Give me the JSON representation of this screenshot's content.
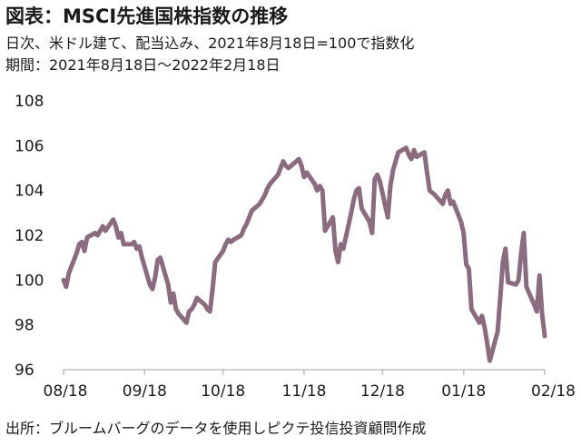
{
  "header": {
    "title": "図表：MSCI先進国株指数の推移",
    "subtitle_1": "日次、米ドル建て、配当込み、2021年8月18日=100で指数化",
    "subtitle_2": "期間：2021年8月18日～2022年2月18日"
  },
  "footer": {
    "source": "出所：ブルームバーグのデータを使用しピクテ投信投資顧問作成"
  },
  "chart_data": {
    "type": "line",
    "title": "図表：MSCI先進国株指数の推移",
    "xlabel": "",
    "ylabel": "",
    "ylim": [
      96,
      108
    ],
    "yticks": [
      96,
      98,
      100,
      102,
      104,
      106,
      108
    ],
    "ytick_labels": [
      "96",
      "98",
      "100",
      "102",
      "104",
      "106",
      "108"
    ],
    "xlim": [
      "2021-08-18",
      "2022-02-18"
    ],
    "xticks": [
      "2021-08-18",
      "2021-09-18",
      "2021-10-18",
      "2021-11-18",
      "2021-12-18",
      "2022-01-18",
      "2022-02-18"
    ],
    "xtick_labels": [
      "08/18",
      "09/18",
      "10/18",
      "11/18",
      "12/18",
      "01/18",
      "02/18"
    ],
    "grid": false,
    "line_color": "#8b6b7e",
    "series": [
      {
        "x": [
          "2021-08-18",
          "2021-08-19",
          "2021-08-20",
          "2021-08-23",
          "2021-08-24",
          "2021-08-25",
          "2021-08-26",
          "2021-08-27",
          "2021-08-30",
          "2021-08-31",
          "2021-09-01",
          "2021-09-02",
          "2021-09-03",
          "2021-09-06",
          "2021-09-07",
          "2021-09-08",
          "2021-09-09",
          "2021-09-10",
          "2021-09-13",
          "2021-09-14",
          "2021-09-15",
          "2021-09-16",
          "2021-09-17",
          "2021-09-20",
          "2021-09-21",
          "2021-09-22",
          "2021-09-23",
          "2021-09-24",
          "2021-09-27",
          "2021-09-28",
          "2021-09-29",
          "2021-09-30",
          "2021-10-01",
          "2021-10-04",
          "2021-10-05",
          "2021-10-06",
          "2021-10-07",
          "2021-10-08",
          "2021-10-11",
          "2021-10-12",
          "2021-10-13",
          "2021-10-14",
          "2021-10-15",
          "2021-10-18",
          "2021-10-19",
          "2021-10-20",
          "2021-10-21",
          "2021-10-22",
          "2021-10-25",
          "2021-10-26",
          "2021-10-27",
          "2021-10-28",
          "2021-10-29",
          "2021-11-01",
          "2021-11-02",
          "2021-11-03",
          "2021-11-04",
          "2021-11-05",
          "2021-11-08",
          "2021-11-09",
          "2021-11-10",
          "2021-11-11",
          "2021-11-12",
          "2021-11-15",
          "2021-11-16",
          "2021-11-17",
          "2021-11-18",
          "2021-11-19",
          "2021-11-22",
          "2021-11-23",
          "2021-11-24",
          "2021-11-25",
          "2021-11-26",
          "2021-11-29",
          "2021-11-30",
          "2021-12-01",
          "2021-12-02",
          "2021-12-03",
          "2021-12-06",
          "2021-12-07",
          "2021-12-08",
          "2021-12-09",
          "2021-12-10",
          "2021-12-13",
          "2021-12-14",
          "2021-12-15",
          "2021-12-16",
          "2021-12-17",
          "2021-12-20",
          "2021-12-21",
          "2021-12-22",
          "2021-12-23",
          "2021-12-24",
          "2021-12-27",
          "2021-12-28",
          "2021-12-29",
          "2021-12-30",
          "2021-12-31",
          "2022-01-03",
          "2022-01-04",
          "2022-01-05",
          "2022-01-06",
          "2022-01-07",
          "2022-01-10",
          "2022-01-11",
          "2022-01-12",
          "2022-01-13",
          "2022-01-14",
          "2022-01-17",
          "2022-01-18",
          "2022-01-19",
          "2022-01-20",
          "2022-01-21",
          "2022-01-24",
          "2022-01-25",
          "2022-01-26",
          "2022-01-27",
          "2022-01-28",
          "2022-01-31",
          "2022-02-01",
          "2022-02-02",
          "2022-02-03",
          "2022-02-04",
          "2022-02-07",
          "2022-02-08",
          "2022-02-09",
          "2022-02-10",
          "2022-02-11",
          "2022-02-14",
          "2022-02-15",
          "2022-02-16",
          "2022-02-17",
          "2022-02-18"
        ],
        "values": [
          100.0,
          99.7,
          100.3,
          101.2,
          101.6,
          101.7,
          101.3,
          101.9,
          102.1,
          102.0,
          102.2,
          102.4,
          102.2,
          102.7,
          102.4,
          101.9,
          102.1,
          101.6,
          101.6,
          101.7,
          101.4,
          101.5,
          101.0,
          99.8,
          99.6,
          100.1,
          100.9,
          101.0,
          99.8,
          99.0,
          99.4,
          98.7,
          98.5,
          98.1,
          98.6,
          98.7,
          98.9,
          99.2,
          98.9,
          98.7,
          98.6,
          99.6,
          100.8,
          101.3,
          101.6,
          101.8,
          101.7,
          101.8,
          102.0,
          102.3,
          102.5,
          102.8,
          103.1,
          103.4,
          103.6,
          103.8,
          104.1,
          104.3,
          104.7,
          105.0,
          105.3,
          105.1,
          105.0,
          105.3,
          105.4,
          105.1,
          104.6,
          104.8,
          104.3,
          104.0,
          104.2,
          104.0,
          102.2,
          102.8,
          101.3,
          100.8,
          101.6,
          101.4,
          103.0,
          103.6,
          104.0,
          104.1,
          103.2,
          102.6,
          102.1,
          104.5,
          104.7,
          104.4,
          102.8,
          104.2,
          104.9,
          105.3,
          105.7,
          105.9,
          105.6,
          105.4,
          105.8,
          105.5,
          105.7,
          104.8,
          104.0,
          103.9,
          103.8,
          103.4,
          103.8,
          104.0,
          103.4,
          103.5,
          102.6,
          102.1,
          100.7,
          100.5,
          98.7,
          98.1,
          98.4,
          97.9,
          97.2,
          96.4,
          97.7,
          99.2,
          100.8,
          101.4,
          99.9,
          99.8,
          100.0,
          101.2,
          102.1,
          99.7,
          98.9,
          98.6,
          100.2,
          98.5,
          97.5
        ]
      }
    ]
  }
}
